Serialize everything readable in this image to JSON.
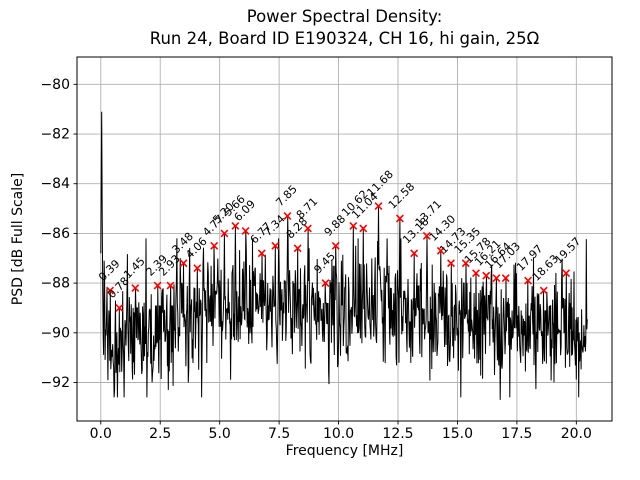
{
  "chart_data": {
    "type": "line",
    "title": "Power Spectral Density:\nRun 24, Board ID E190324, CH 16, hi gain, 25Ω",
    "title_line1": "Power Spectral Density:",
    "title_line2": "Run 24, Board ID E190324, CH 16, hi gain, 25Ω",
    "xlabel": "Frequency [MHz]",
    "ylabel": "PSD [dB Full Scale]",
    "x_ticks": [
      0.0,
      2.5,
      5.0,
      7.5,
      10.0,
      12.5,
      15.0,
      17.5,
      20.0
    ],
    "y_ticks": [
      -80,
      -82,
      -84,
      -86,
      -88,
      -90,
      -92
    ],
    "xlim": [
      -1.0,
      21.5
    ],
    "ylim": [
      -93.55,
      -78.9
    ],
    "f_max": 20.46,
    "grid": true,
    "legend": "none",
    "line_color": "#000000",
    "marker_color": "#ff0000",
    "grid_color": "#b0b0b0",
    "noise_floor_db_mean": -89.5,
    "dc_spike": {
      "f": 0.04,
      "db": -81.1
    },
    "deep_dip": {
      "f": 16.8,
      "db": -92.7
    },
    "peak_label_rotation_deg": 45,
    "peaks": [
      {
        "f": 0.39,
        "db": -88.3,
        "label": "0.39"
      },
      {
        "f": 0.78,
        "db": -89.0,
        "label": "0.78"
      },
      {
        "f": 1.45,
        "db": -88.2,
        "label": "1.45"
      },
      {
        "f": 2.39,
        "db": -88.1,
        "label": "2.39"
      },
      {
        "f": 2.93,
        "db": -88.1,
        "label": "2.93"
      },
      {
        "f": 3.48,
        "db": -87.2,
        "label": "3.48"
      },
      {
        "f": 4.06,
        "db": -87.4,
        "label": "4.06"
      },
      {
        "f": 4.77,
        "db": -86.5,
        "label": "4.77"
      },
      {
        "f": 5.2,
        "db": -86.0,
        "label": "5.20"
      },
      {
        "f": 5.66,
        "db": -85.7,
        "label": "5.66"
      },
      {
        "f": 6.09,
        "db": -85.9,
        "label": "6.09"
      },
      {
        "f": 6.77,
        "db": -86.8,
        "label": "6.77"
      },
      {
        "f": 7.34,
        "db": -86.5,
        "label": "7.34"
      },
      {
        "f": 7.85,
        "db": -85.3,
        "label": "7.85"
      },
      {
        "f": 8.28,
        "db": -86.6,
        "label": "8.28"
      },
      {
        "f": 8.71,
        "db": -85.8,
        "label": "8.71"
      },
      {
        "f": 9.45,
        "db": -88.0,
        "label": "9.45"
      },
      {
        "f": 9.88,
        "db": -86.5,
        "label": "9.88"
      },
      {
        "f": 10.62,
        "db": -85.7,
        "label": "10.62"
      },
      {
        "f": 11.04,
        "db": -85.8,
        "label": "11.04"
      },
      {
        "f": 11.68,
        "db": -84.9,
        "label": "11.68"
      },
      {
        "f": 12.58,
        "db": -85.4,
        "label": "12.58"
      },
      {
        "f": 13.18,
        "db": -86.8,
        "label": "13.18"
      },
      {
        "f": 13.71,
        "db": -86.1,
        "label": "13.71"
      },
      {
        "f": 14.3,
        "db": -86.7,
        "label": "14.30"
      },
      {
        "f": 14.73,
        "db": -87.2,
        "label": "14.73"
      },
      {
        "f": 15.35,
        "db": -87.2,
        "label": "15.35"
      },
      {
        "f": 15.78,
        "db": -87.6,
        "label": "15.78"
      },
      {
        "f": 16.21,
        "db": -87.7,
        "label": "16.21"
      },
      {
        "f": 16.64,
        "db": -87.8,
        "label": "16.64"
      },
      {
        "f": 17.03,
        "db": -87.8,
        "label": "17.03"
      },
      {
        "f": 17.97,
        "db": -87.9,
        "label": "17.97"
      },
      {
        "f": 18.63,
        "db": -88.3,
        "label": "18.63"
      },
      {
        "f": 19.57,
        "db": -87.6,
        "label": "19.57"
      }
    ]
  }
}
